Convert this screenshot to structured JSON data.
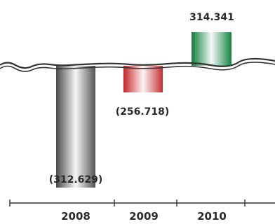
{
  "chart_data": {
    "type": "bar",
    "categories": [
      "2008",
      "2009",
      "2010"
    ],
    "values": [
      -312.629,
      -256.718,
      314.341
    ],
    "value_labels": [
      "(312.629)",
      "(256.718)",
      "314.341"
    ],
    "axis_break": true,
    "grid": false,
    "legend": "none",
    "colors": {
      "2008": "#5a5a5a",
      "2009": "#c8383a",
      "2010": "#1f8a4c",
      "text": "#2a2a2a",
      "axis": "#333333"
    }
  }
}
